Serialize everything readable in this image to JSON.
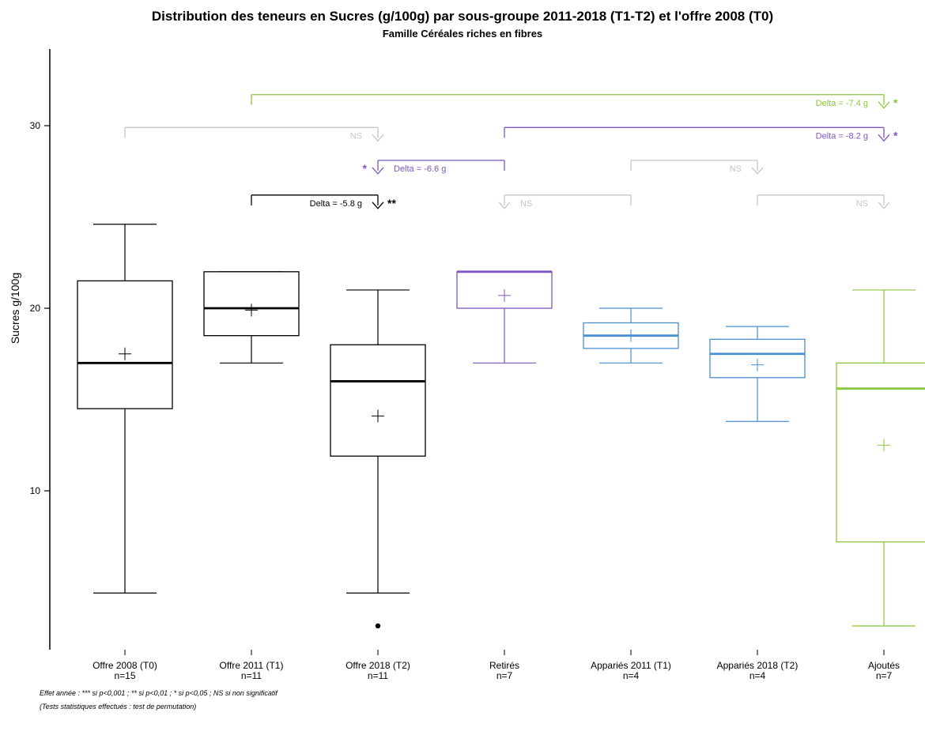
{
  "chart_data": {
    "type": "box",
    "title": "Distribution des teneurs en Sucres (g/100g) par sous-groupe 2011-2018 (T1-T2) et l'offre 2008 (T0)",
    "subtitle": "Famille Céréales riches en fibres",
    "ylabel": "Sucres g/100g",
    "ylim": [
      1.3,
      34.2
    ],
    "yticks": [
      10,
      20,
      30
    ],
    "grid": false,
    "colors": {
      "black": "#000000",
      "purple": "#7e57c2",
      "blue": "#4a8fd0",
      "green": "#8cc63f",
      "gray": "#c6c6c6"
    },
    "groups": [
      {
        "label": "Offre 2008 (T0)",
        "n": "n=15",
        "min": 4.4,
        "q1": 14.5,
        "median": 17.0,
        "q3": 21.5,
        "max": 24.6,
        "mean": 17.5,
        "outliers": [],
        "color": "black"
      },
      {
        "label": "Offre 2011 (T1)",
        "n": "n=11",
        "min": 17.0,
        "q1": 18.5,
        "median": 20.0,
        "q3": 22.0,
        "max": 22.0,
        "mean": 19.9,
        "outliers": [],
        "color": "black"
      },
      {
        "label": "Offre 2018 (T2)",
        "n": "n=11",
        "min": 4.4,
        "q1": 11.9,
        "median": 16.0,
        "q3": 18.0,
        "max": 21.0,
        "mean": 14.1,
        "outliers": [
          2.6
        ],
        "color": "black"
      },
      {
        "label": "Retirés",
        "n": "n=7",
        "min": 17.0,
        "q1": 20.0,
        "median": 22.0,
        "q3": 22.0,
        "max": 22.0,
        "mean": 20.7,
        "outliers": [],
        "color": "purple"
      },
      {
        "label": "Appariés 2011 (T1)",
        "n": "n=4",
        "min": 17.0,
        "q1": 17.8,
        "median": 18.5,
        "q3": 19.2,
        "max": 20.0,
        "mean": 18.5,
        "outliers": [],
        "color": "blue"
      },
      {
        "label": "Appariés 2018 (T2)",
        "n": "n=4",
        "min": 13.8,
        "q1": 16.2,
        "median": 17.5,
        "q3": 18.3,
        "max": 19.0,
        "mean": 16.9,
        "outliers": [],
        "color": "blue"
      },
      {
        "label": "Ajoutés",
        "n": "n=7",
        "min": 2.6,
        "q1": 7.2,
        "median": 15.6,
        "q3": 17.0,
        "max": 21.0,
        "mean": 12.5,
        "outliers": [],
        "color": "green"
      }
    ],
    "comparisons": [
      {
        "from": 1,
        "to": 2,
        "y": 26.2,
        "label": "Delta = -5.8 g",
        "stars": "**",
        "color": "black",
        "arrow_at": "to",
        "label_side": "left",
        "stars_side": "right"
      },
      {
        "from": 2,
        "to": 3,
        "y": 28.1,
        "label": "Delta = -6.6 g",
        "stars": "*",
        "color": "purple",
        "arrow_at": "from",
        "label_side": "right",
        "stars_side": "left"
      },
      {
        "from": 0,
        "to": 2,
        "y": 29.9,
        "label": "NS",
        "stars": "",
        "color": "gray",
        "arrow_at": "to",
        "label_side": "left",
        "stars_side": "right"
      },
      {
        "from": 3,
        "to": 6,
        "y": 29.9,
        "label": "Delta = -8.2 g",
        "stars": "*",
        "color": "purple",
        "arrow_at": "to",
        "label_side": "left",
        "stars_side": "right"
      },
      {
        "from": 1,
        "to": 6,
        "y": 31.7,
        "label": "Delta = -7.4 g",
        "stars": "*",
        "color": "green",
        "arrow_at": "to",
        "label_side": "left",
        "stars_side": "right"
      },
      {
        "from": 3,
        "to": 4,
        "y": 26.2,
        "label": "NS",
        "stars": "",
        "color": "gray",
        "arrow_at": "from",
        "label_side": "right",
        "stars_side": "left"
      },
      {
        "from": 4,
        "to": 5,
        "y": 28.1,
        "label": "NS",
        "stars": "",
        "color": "gray",
        "arrow_at": "to",
        "label_side": "left",
        "stars_side": "right"
      },
      {
        "from": 5,
        "to": 6,
        "y": 26.2,
        "label": "NS",
        "stars": "",
        "color": "gray",
        "arrow_at": "to",
        "label_side": "left",
        "stars_side": "right"
      }
    ]
  },
  "footnotes": {
    "line1": "Effet année : *** si p<0,001 ; ** si p<0,01 ; * si p<0,05 ; NS si non significatif",
    "line2": "(Tests statistiques effectués : test de permutation)"
  }
}
